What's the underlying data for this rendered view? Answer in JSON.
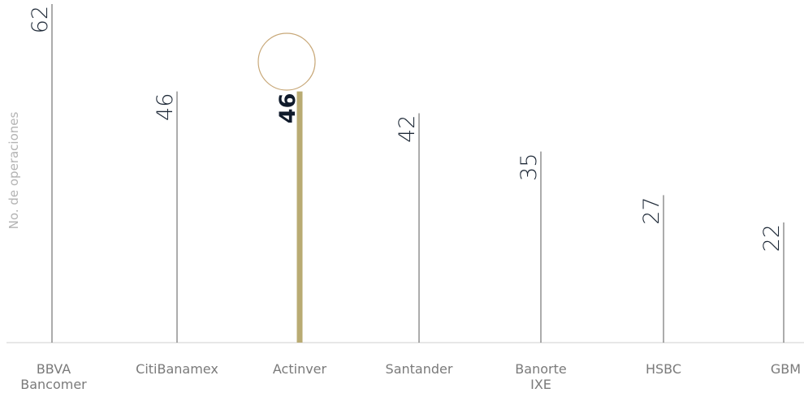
{
  "chart_data": {
    "type": "bar",
    "ylabel": "No. de operaciones",
    "xlabel": "",
    "title": "",
    "categories": [
      [
        "BBVA",
        "Bancomer"
      ],
      [
        "CitiBanamex"
      ],
      [
        "Actinver"
      ],
      [
        "Santander"
      ],
      [
        "Banorte",
        "IXE"
      ],
      [
        "HSBC"
      ],
      [
        "GBM"
      ]
    ],
    "values": [
      62,
      46,
      46,
      42,
      35,
      27,
      22
    ],
    "highlight_index": 2,
    "ylim": [
      0,
      62
    ],
    "grid": false,
    "colors": {
      "bar": "#5a5a5a",
      "highlight_bar": "#b9ab73",
      "circle": "#c8a878",
      "axis": "#cfcfcf"
    }
  }
}
